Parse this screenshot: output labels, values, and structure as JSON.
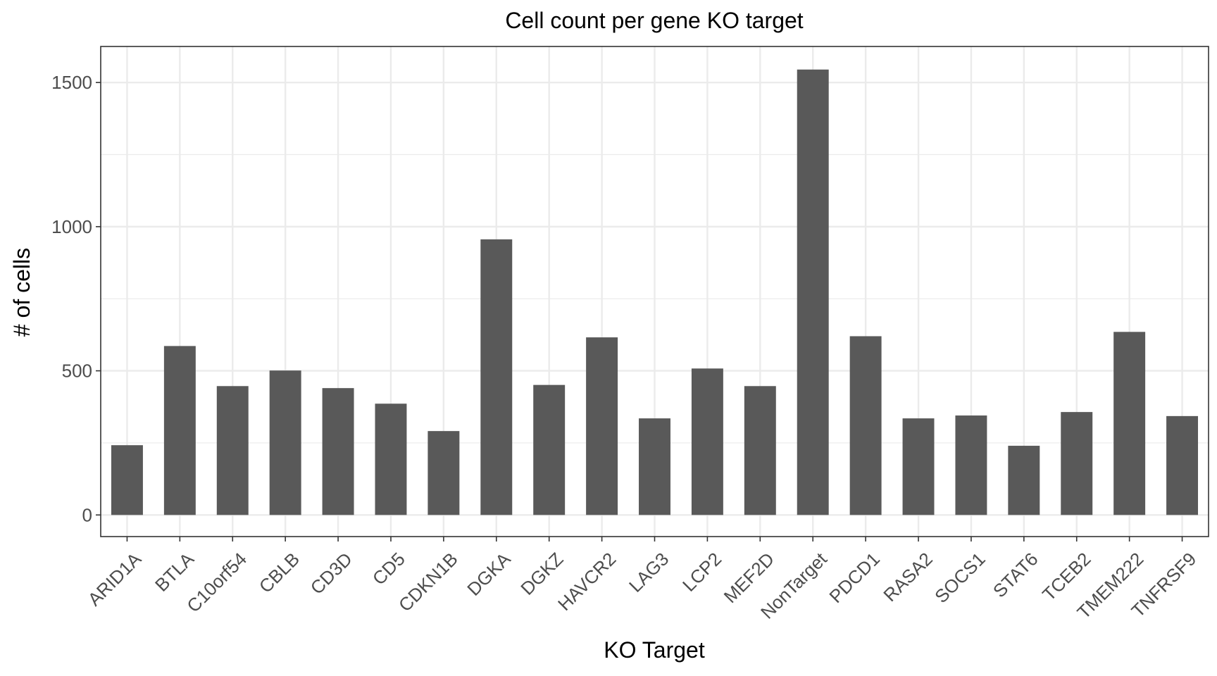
{
  "chart_data": {
    "type": "bar",
    "title": "Cell count per gene KO target",
    "xlabel": "KO Target",
    "ylabel": "# of cells",
    "categories": [
      "ARID1A",
      "BTLA",
      "C10orf54",
      "CBLB",
      "CD3D",
      "CD5",
      "CDKN1B",
      "DGKA",
      "DGKZ",
      "HAVCR2",
      "LAG3",
      "LCP2",
      "MEF2D",
      "NonTarget",
      "PDCD1",
      "RASA2",
      "SOCS1",
      "STAT6",
      "TCEB2",
      "TMEM222",
      "TNFRSF9"
    ],
    "values": [
      242,
      586,
      447,
      501,
      440,
      386,
      291,
      956,
      451,
      616,
      335,
      508,
      447,
      1545,
      620,
      335,
      345,
      240,
      357,
      635,
      343
    ],
    "ylim": [
      -75,
      1625
    ],
    "yticks": [
      0,
      500,
      1000,
      1500
    ],
    "ytick_labels": [
      "0",
      "500",
      "1000",
      "1500"
    ],
    "bar_color": "#595959",
    "grid": true,
    "legend": "none"
  }
}
